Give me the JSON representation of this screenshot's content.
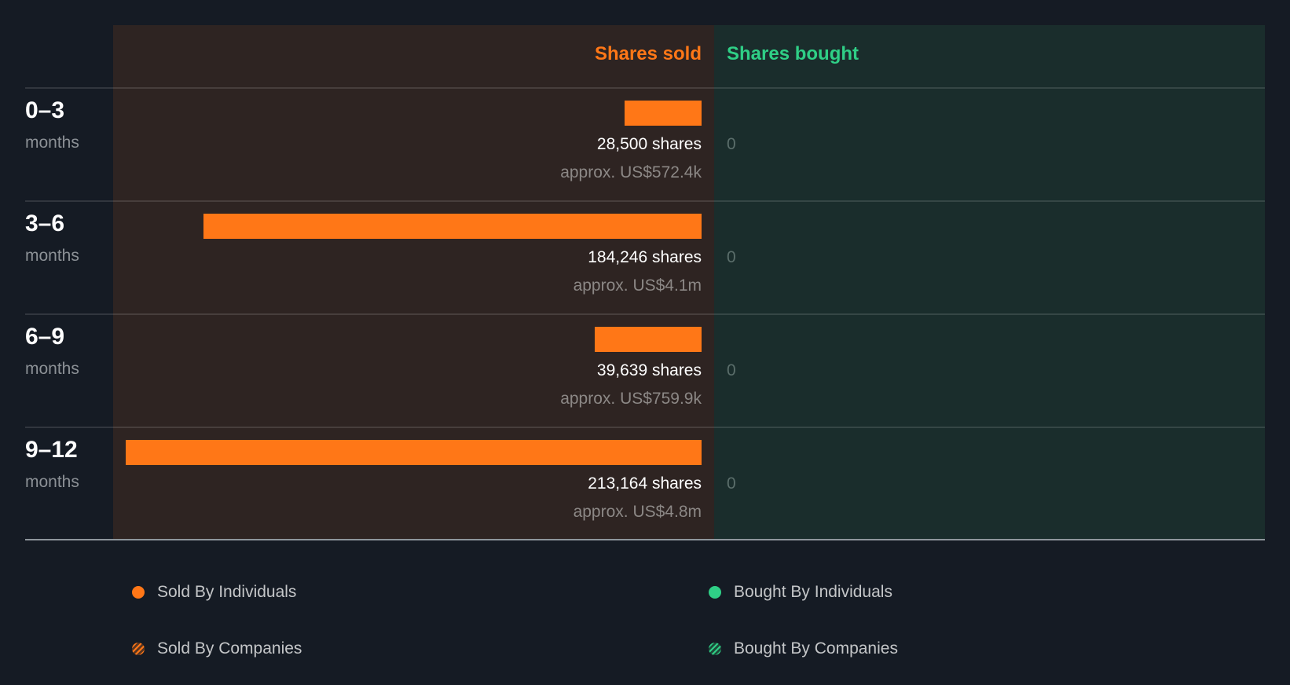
{
  "header": {
    "sold_label": "Shares sold",
    "bought_label": "Shares bought"
  },
  "rows": [
    {
      "range": "0–3",
      "unit": "months",
      "sold_shares": "28,500 shares",
      "sold_value": "approx. US$572.4k",
      "bought": "0"
    },
    {
      "range": "3–6",
      "unit": "months",
      "sold_shares": "184,246 shares",
      "sold_value": "approx. US$4.1m",
      "bought": "0"
    },
    {
      "range": "6–9",
      "unit": "months",
      "sold_shares": "39,639 shares",
      "sold_value": "approx. US$759.9k",
      "bought": "0"
    },
    {
      "range": "9–12",
      "unit": "months",
      "sold_shares": "213,164 shares",
      "sold_value": "approx. US$4.8m",
      "bought": "0"
    }
  ],
  "legend": {
    "sold_individuals": "Sold By Individuals",
    "bought_individuals": "Bought By Individuals",
    "sold_companies": "Sold By Companies",
    "bought_companies": "Bought By Companies"
  },
  "colors": {
    "sold": "#ff7717",
    "bought": "#2fcf86",
    "sold_panel": "#2e2422",
    "bought_panel": "#1a2d2c",
    "background": "#151b24"
  },
  "chart_data": {
    "type": "bar",
    "orientation": "horizontal",
    "title": "",
    "categories": [
      "0–3 months",
      "3–6 months",
      "6–9 months",
      "9–12 months"
    ],
    "series": [
      {
        "name": "Shares sold",
        "values": [
          28500,
          184246,
          39639,
          213164
        ],
        "approx_value_usd": [
          "US$572.4k",
          "US$4.1m",
          "US$759.9k",
          "US$4.8m"
        ],
        "color": "#ff7717"
      },
      {
        "name": "Shares bought",
        "values": [
          0,
          0,
          0,
          0
        ],
        "color": "#2fcf86"
      }
    ],
    "legend": [
      "Sold By Individuals",
      "Bought By Individuals",
      "Sold By Companies",
      "Bought By Companies"
    ],
    "legend_position": "bottom",
    "grid": false,
    "xlabel": "",
    "ylabel": ""
  }
}
